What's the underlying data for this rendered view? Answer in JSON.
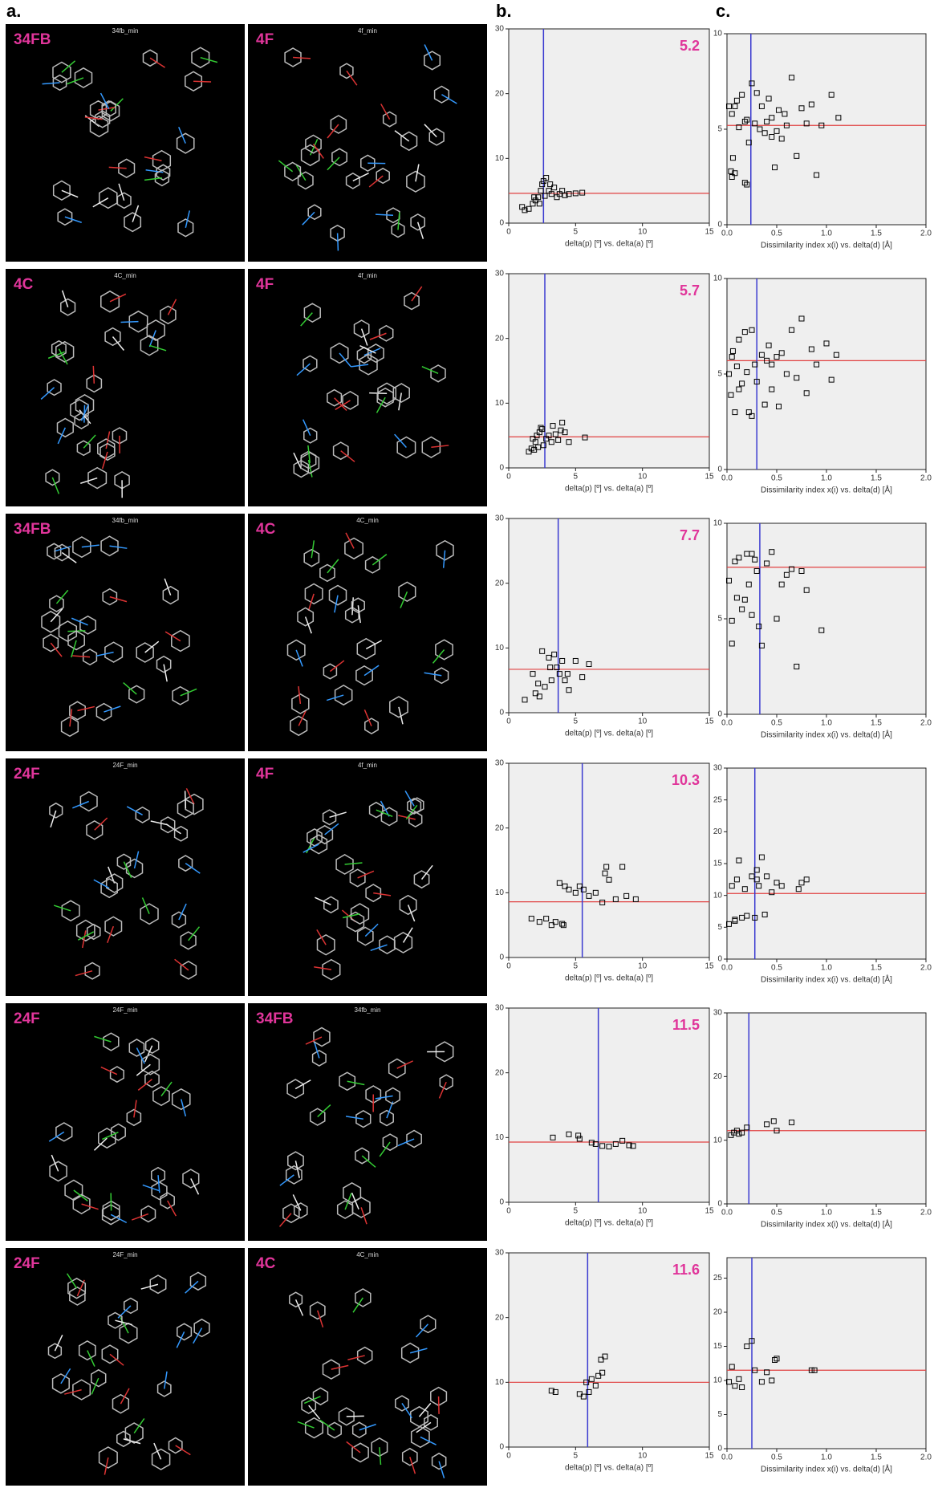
{
  "headers": [
    "a.",
    "b.",
    "c."
  ],
  "panels": [
    {
      "label": "34FB",
      "caption": "34fb_min"
    },
    {
      "label": "4F",
      "caption": "4f_min"
    },
    {
      "label": "4C",
      "caption": "4C_min"
    },
    {
      "label": "4F",
      "caption": "4f_min"
    },
    {
      "label": "34FB",
      "caption": "34fb_min"
    },
    {
      "label": "4C",
      "caption": "4C_min"
    },
    {
      "label": "24F",
      "caption": "24F_min"
    },
    {
      "label": "4F",
      "caption": "4f_min"
    },
    {
      "label": "24F",
      "caption": "24F_min"
    },
    {
      "label": "34FB",
      "caption": "34fb_min"
    },
    {
      "label": "24F",
      "caption": "24F_min"
    },
    {
      "label": "4C",
      "caption": "4C_min"
    }
  ],
  "chart_data": [
    {
      "type": "scatter",
      "xlabel": "delta(p) [º] vs. delta(a) [º]",
      "annotation": "5.2",
      "x": [
        1,
        1.2,
        1.5,
        1.8,
        2,
        2.2,
        2.4,
        2.5,
        2.6,
        2.8,
        3,
        3.2,
        3.4,
        3.6,
        3.8,
        4,
        4.2,
        4.5,
        5,
        5.5,
        2.3,
        2.7,
        1.9,
        3.1
      ],
      "values": [
        2.5,
        2,
        2.2,
        3,
        3.5,
        4,
        5,
        6,
        6.5,
        7,
        5,
        4.5,
        5.5,
        4,
        4.5,
        5,
        4.3,
        4.5,
        4.6,
        4.7,
        3,
        4.2,
        4,
        6
      ],
      "xlim": [
        0,
        15
      ],
      "xticks": [
        0,
        5,
        10,
        15
      ],
      "ylim": [
        0,
        30
      ],
      "yticks": [
        0,
        10,
        20,
        30
      ],
      "vline": 2.6,
      "hline": 4.6,
      "marker_color": "#000000",
      "vline_color": "#3a3ad0",
      "hline_color": "#e04040"
    },
    {
      "type": "scatter",
      "xlabel": "Dissimilarity index x(i) vs. delta(d) [Å]",
      "x": [
        0.02,
        0.04,
        0.05,
        0.06,
        0.08,
        0.1,
        0.12,
        0.15,
        0.18,
        0.2,
        0.22,
        0.25,
        0.28,
        0.3,
        0.33,
        0.35,
        0.38,
        0.4,
        0.42,
        0.45,
        0.48,
        0.5,
        0.52,
        0.55,
        0.58,
        0.6,
        0.65,
        0.7,
        0.75,
        0.8,
        0.85,
        0.9,
        0.95,
        1.05,
        1.12,
        0.05,
        0.08,
        0.2,
        0.18,
        0.45
      ],
      "values": [
        6.2,
        2.8,
        5.8,
        3.5,
        2.7,
        6.5,
        5.1,
        6.8,
        2.2,
        5.5,
        4.3,
        7.4,
        5.3,
        6.9,
        5.0,
        6.2,
        4.8,
        5.4,
        6.6,
        4.6,
        3.0,
        4.9,
        6.0,
        4.5,
        5.8,
        5.2,
        7.7,
        3.6,
        6.1,
        5.3,
        6.3,
        2.6,
        5.2,
        6.8,
        5.6,
        2.5,
        6.2,
        2.1,
        5.4,
        5.6
      ],
      "xlim": [
        0,
        2
      ],
      "xticks": [
        {
          "value": 0,
          "label": "0.0"
        },
        0.5,
        {
          "value": 1,
          "label": "1.0"
        },
        1.5,
        {
          "value": 2,
          "label": "2.0"
        }
      ],
      "ylim": [
        0,
        10
      ],
      "yticks": [
        0,
        5,
        10
      ],
      "vline": 0.24,
      "hline": 5.2,
      "marker_color": "#000000",
      "vline_color": "#3a3ad0",
      "hline_color": "#e04040"
    },
    {
      "type": "scatter",
      "xlabel": "delta(p) [º] vs. delta(a) [º]",
      "annotation": "5.7",
      "x": [
        1.5,
        1.7,
        1.9,
        2,
        2.1,
        2.3,
        2.5,
        2.6,
        2.8,
        3,
        3.2,
        3.3,
        3.5,
        3.7,
        4,
        4.2,
        4.5,
        5.7,
        2.2,
        2.4,
        1.8,
        3.9
      ],
      "values": [
        2.5,
        3,
        2.8,
        4,
        5,
        5.5,
        6,
        3.5,
        4.5,
        5,
        4,
        6.5,
        5.2,
        4.3,
        7,
        5.5,
        4,
        4.7,
        3.2,
        6.2,
        4.5,
        5.8
      ],
      "xlim": [
        0,
        15
      ],
      "xticks": [
        0,
        5,
        10,
        15
      ],
      "ylim": [
        0,
        30
      ],
      "yticks": [
        0,
        10,
        20,
        30
      ],
      "vline": 2.7,
      "hline": 4.8,
      "marker_color": "#000000",
      "vline_color": "#3a3ad0",
      "hline_color": "#e04040"
    },
    {
      "type": "scatter",
      "xlabel": "Dissimilarity index x(i) vs. delta(d) [Å]",
      "x": [
        0.02,
        0.04,
        0.06,
        0.08,
        0.1,
        0.12,
        0.15,
        0.18,
        0.2,
        0.22,
        0.25,
        0.28,
        0.3,
        0.35,
        0.38,
        0.4,
        0.42,
        0.45,
        0.5,
        0.52,
        0.55,
        0.6,
        0.65,
        0.7,
        0.75,
        0.8,
        0.85,
        0.9,
        1.0,
        1.05,
        1.1,
        0.05,
        0.12,
        0.25,
        0.45
      ],
      "values": [
        5.0,
        3.9,
        6.2,
        3.0,
        5.4,
        6.8,
        4.5,
        7.2,
        5.1,
        3.0,
        7.3,
        5.5,
        4.6,
        6.0,
        3.4,
        5.7,
        6.5,
        4.2,
        5.9,
        3.3,
        6.1,
        5.0,
        7.3,
        4.8,
        7.9,
        4.0,
        6.3,
        5.5,
        6.6,
        4.7,
        6.0,
        5.9,
        4.2,
        2.8,
        5.5
      ],
      "xlim": [
        0,
        2
      ],
      "xticks": [
        {
          "value": 0,
          "label": "0.0"
        },
        0.5,
        {
          "value": 1,
          "label": "1.0"
        },
        1.5,
        {
          "value": 2,
          "label": "2.0"
        }
      ],
      "ylim": [
        0,
        10
      ],
      "yticks": [
        0,
        5,
        10
      ],
      "vline": 0.3,
      "hline": 5.7,
      "marker_color": "#000000",
      "vline_color": "#3a3ad0",
      "hline_color": "#e04040"
    },
    {
      "type": "scatter",
      "xlabel": "delta(p) [º] vs. delta(a) [º]",
      "annotation": "7.7",
      "x": [
        1.2,
        1.8,
        2,
        2.3,
        2.5,
        2.7,
        3,
        3.2,
        3.4,
        3.6,
        3.8,
        4,
        4.2,
        4.5,
        5,
        5.5,
        6,
        2.2,
        3.1,
        4.4
      ],
      "values": [
        2,
        6,
        3,
        2.5,
        9.5,
        4,
        8.5,
        5,
        9,
        7,
        6,
        8,
        5,
        3.5,
        8,
        5.5,
        7.5,
        4.5,
        7,
        6
      ],
      "xlim": [
        0,
        15
      ],
      "xticks": [
        0,
        5,
        10,
        15
      ],
      "ylim": [
        0,
        30
      ],
      "yticks": [
        0,
        10,
        20,
        30
      ],
      "vline": 3.7,
      "hline": 6.7,
      "marker_color": "#000000",
      "vline_color": "#3a3ad0",
      "hline_color": "#e04040"
    },
    {
      "type": "scatter",
      "xlabel": "Dissimilarity index x(i) vs. delta(d) [Å]",
      "x": [
        0.02,
        0.05,
        0.08,
        0.1,
        0.12,
        0.15,
        0.18,
        0.2,
        0.22,
        0.25,
        0.28,
        0.3,
        0.32,
        0.35,
        0.4,
        0.45,
        0.5,
        0.55,
        0.6,
        0.65,
        0.7,
        0.75,
        0.8,
        0.95,
        0.05,
        0.25
      ],
      "values": [
        7.0,
        3.7,
        8.0,
        6.1,
        8.2,
        5.5,
        6.0,
        8.4,
        6.8,
        5.2,
        8.1,
        7.5,
        4.6,
        3.6,
        7.9,
        8.5,
        5.0,
        6.8,
        7.3,
        7.6,
        2.5,
        7.5,
        6.5,
        4.4,
        4.9,
        8.4
      ],
      "xlim": [
        0,
        2
      ],
      "xticks": [
        {
          "value": 0,
          "label": "0.0"
        },
        0.5,
        {
          "value": 1,
          "label": "1.0"
        },
        1.5,
        {
          "value": 2,
          "label": "2.0"
        }
      ],
      "ylim": [
        0,
        10
      ],
      "yticks": [
        0,
        5,
        10
      ],
      "vline": 0.33,
      "hline": 7.7,
      "marker_color": "#000000",
      "vline_color": "#3a3ad0",
      "hline_color": "#e04040"
    },
    {
      "type": "scatter",
      "xlabel": "delta(p) [º] vs. delta(a) [º]",
      "annotation": "10.3",
      "x": [
        1.7,
        2.3,
        2.8,
        3.2,
        3.5,
        3.8,
        4,
        4.2,
        4.5,
        5,
        5.3,
        5.6,
        6,
        6.5,
        7,
        7.2,
        7.5,
        8,
        8.5,
        8.8,
        9.5,
        4.1,
        7.3
      ],
      "values": [
        6,
        5.5,
        6,
        5,
        5.5,
        11.5,
        5.2,
        11,
        10.5,
        10,
        11,
        10.5,
        9.5,
        10,
        8.5,
        13,
        12,
        9,
        14,
        9.5,
        9,
        5,
        14
      ],
      "xlim": [
        0,
        15
      ],
      "xticks": [
        0,
        5,
        10,
        15
      ],
      "ylim": [
        0,
        30
      ],
      "yticks": [
        0,
        10,
        20,
        30
      ],
      "vline": 5.5,
      "hline": 8.6,
      "marker_color": "#000000",
      "vline_color": "#3a3ad0",
      "hline_color": "#e04040"
    },
    {
      "type": "scatter",
      "xlabel": "Dissimilarity index x(i) vs. delta(d) [Å]",
      "x": [
        0.02,
        0.05,
        0.08,
        0.1,
        0.12,
        0.15,
        0.18,
        0.2,
        0.25,
        0.28,
        0.3,
        0.32,
        0.35,
        0.38,
        0.4,
        0.45,
        0.5,
        0.55,
        0.72,
        0.75,
        0.8,
        0.08,
        0.3
      ],
      "values": [
        5.5,
        11.5,
        6.2,
        12.5,
        15.5,
        6.5,
        11,
        6.8,
        13,
        6.5,
        14,
        11.5,
        16,
        7,
        13,
        10.5,
        12,
        11.5,
        11,
        12,
        12.5,
        6,
        12.5
      ],
      "xlim": [
        0,
        2
      ],
      "xticks": [
        {
          "value": 0,
          "label": "0.0"
        },
        0.5,
        {
          "value": 1,
          "label": "1.0"
        },
        1.5,
        {
          "value": 2,
          "label": "2.0"
        }
      ],
      "ylim": [
        0,
        30
      ],
      "yticks": [
        0,
        5,
        10,
        15,
        20,
        25,
        30
      ],
      "vline": 0.28,
      "hline": 10.3,
      "marker_color": "#000000",
      "vline_color": "#3a3ad0",
      "hline_color": "#e04040"
    },
    {
      "type": "scatter",
      "xlabel": "delta(p) [º] vs. delta(a) [º]",
      "annotation": "11.5",
      "x": [
        3.3,
        4.5,
        5.2,
        5.3,
        6.2,
        6.5,
        7,
        7.5,
        8,
        8.5,
        9,
        9.3
      ],
      "values": [
        10,
        10.5,
        10.3,
        9.8,
        9.2,
        9,
        8.7,
        8.6,
        9,
        9.5,
        8.8,
        8.7
      ],
      "xlim": [
        0,
        15
      ],
      "xticks": [
        0,
        5,
        10,
        15
      ],
      "ylim": [
        0,
        30
      ],
      "yticks": [
        0,
        10,
        20,
        30
      ],
      "vline": 6.7,
      "hline": 9.3,
      "marker_color": "#000000",
      "vline_color": "#3a3ad0",
      "hline_color": "#e04040"
    },
    {
      "type": "scatter",
      "xlabel": "Dissimilarity index x(i) vs. delta(d) [Å]",
      "x": [
        0.04,
        0.07,
        0.1,
        0.12,
        0.15,
        0.2,
        0.4,
        0.47,
        0.5,
        0.65
      ],
      "values": [
        10.8,
        11.2,
        11.5,
        11,
        11.2,
        12,
        12.5,
        13,
        11.5,
        12.8
      ],
      "xlim": [
        0,
        2
      ],
      "xticks": [
        {
          "value": 0,
          "label": "0.0"
        },
        0.5,
        {
          "value": 1,
          "label": "1.0"
        },
        1.5,
        {
          "value": 2,
          "label": "2.0"
        }
      ],
      "ylim": [
        0,
        30
      ],
      "yticks": [
        0,
        10,
        20,
        30
      ],
      "vline": 0.22,
      "hline": 11.5,
      "marker_color": "#000000",
      "vline_color": "#3a3ad0",
      "hline_color": "#e04040"
    },
    {
      "type": "scatter",
      "xlabel": "delta(p) [º] vs. delta(a) [º]",
      "annotation": "11.6",
      "x": [
        3.2,
        3.5,
        5.3,
        5.6,
        6,
        6.2,
        6.5,
        6.7,
        7,
        7.2,
        5.8,
        6.9
      ],
      "values": [
        8.7,
        8.5,
        8.2,
        7.8,
        8.5,
        10.5,
        9.5,
        11,
        11.5,
        14,
        10,
        13.5
      ],
      "xlim": [
        0,
        15
      ],
      "xticks": [
        0,
        5,
        10,
        15
      ],
      "ylim": [
        0,
        30
      ],
      "yticks": [
        0,
        10,
        20,
        30
      ],
      "vline": 5.9,
      "hline": 10,
      "marker_color": "#000000",
      "vline_color": "#3a3ad0",
      "hline_color": "#e04040"
    },
    {
      "type": "scatter",
      "xlabel": "Dissimilarity index x(i) vs. delta(d) [Å]",
      "x": [
        0.02,
        0.05,
        0.08,
        0.12,
        0.15,
        0.2,
        0.25,
        0.28,
        0.35,
        0.4,
        0.45,
        0.48,
        0.5,
        0.85,
        0.88
      ],
      "values": [
        9.8,
        12,
        9.2,
        10.2,
        9,
        15,
        15.8,
        11.5,
        9.8,
        11.2,
        10,
        13,
        13.2,
        11.5,
        11.5
      ],
      "xlim": [
        0,
        2
      ],
      "xticks": [
        {
          "value": 0,
          "label": "0.0"
        },
        0.5,
        {
          "value": 1,
          "label": "1.0"
        },
        1.5,
        {
          "value": 2,
          "label": "2.0"
        }
      ],
      "ylim": [
        0,
        28
      ],
      "yticks": [
        0,
        5,
        10,
        15,
        20,
        25
      ],
      "vline": 0.25,
      "hline": 11.5,
      "marker_color": "#000000",
      "vline_color": "#3a3ad0",
      "hline_color": "#e04040"
    }
  ]
}
